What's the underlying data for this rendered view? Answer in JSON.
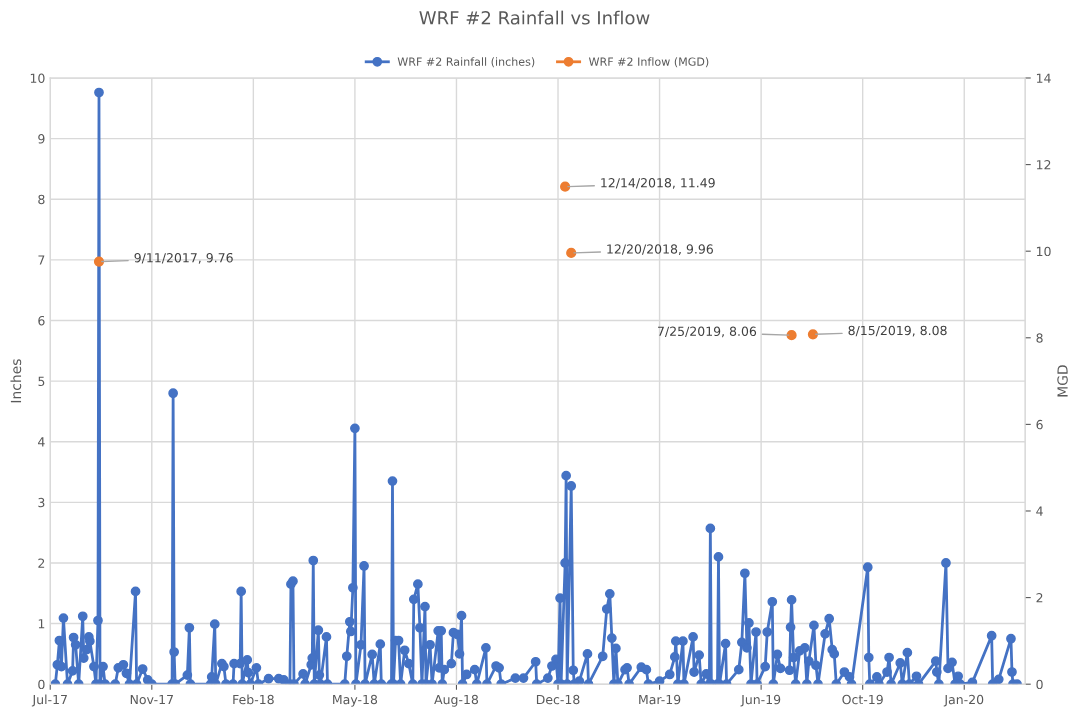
{
  "chart_data": {
    "type": "line",
    "title": "WRF #2 Rainfall vs Inflow",
    "ylabel": "Inches",
    "y2label": "MGD",
    "xlim": [
      "2017-07-25",
      "2020-03-11"
    ],
    "xticks": [
      {
        "value": "2017-07-25",
        "label": "Jul-17"
      },
      {
        "value": "2017-11-02",
        "label": "Nov-17"
      },
      {
        "value": "2018-02-10",
        "label": "Feb-18"
      },
      {
        "value": "2018-05-21",
        "label": "May-18"
      },
      {
        "value": "2018-08-29",
        "label": "Aug-18"
      },
      {
        "value": "2018-12-07",
        "label": "Dec-18"
      },
      {
        "value": "2019-03-17",
        "label": "Mar-19"
      },
      {
        "value": "2019-06-25",
        "label": "Jun-19"
      },
      {
        "value": "2019-10-03",
        "label": "Oct-19"
      },
      {
        "value": "2020-01-11",
        "label": "Jan-20"
      }
    ],
    "ylim": [
      0,
      10
    ],
    "yticks": [
      0,
      1,
      2,
      3,
      4,
      5,
      6,
      7,
      8,
      9,
      10
    ],
    "y2lim": [
      0,
      14
    ],
    "y2ticks": [
      0,
      2,
      4,
      6,
      8,
      10,
      12,
      14
    ],
    "grid": true,
    "legend": "top",
    "marker": "circle",
    "series": [
      {
        "name": "WRF #2 Rainfall (inches)",
        "color": "#4472c4",
        "x": [
          "2017-07-30",
          "2017-08-01",
          "2017-08-03",
          "2017-08-05",
          "2017-08-07",
          "2017-08-11",
          "2017-08-16",
          "2017-08-17",
          "2017-08-19",
          "2017-08-22",
          "2017-08-26",
          "2017-08-27",
          "2017-08-30",
          "2017-09-01",
          "2017-09-02",
          "2017-09-06",
          "2017-09-08",
          "2017-09-10",
          "2017-09-11",
          "2017-09-12",
          "2017-09-15",
          "2017-09-17",
          "2017-09-27",
          "2017-09-30",
          "2017-10-05",
          "2017-10-08",
          "2017-10-11",
          "2017-10-17",
          "2017-10-18",
          "2017-10-24",
          "2017-10-29",
          "2017-11-02",
          "2017-11-22",
          "2017-11-23",
          "2017-11-24",
          "2017-11-25",
          "2017-12-07",
          "2017-12-09",
          "2017-12-10",
          "2017-12-30",
          "2017-12-31",
          "2018-01-03",
          "2018-01-04",
          "2018-01-10",
          "2018-01-12",
          "2018-01-14",
          "2018-01-21",
          "2018-01-22",
          "2018-01-28",
          "2018-01-29",
          "2018-01-30",
          "2018-02-04",
          "2018-02-05",
          "2018-02-07",
          "2018-02-13",
          "2018-02-15",
          "2018-02-25",
          "2018-03-07",
          "2018-03-12",
          "2018-03-18",
          "2018-03-19",
          "2018-03-21",
          "2018-03-22",
          "2018-03-31",
          "2018-04-02",
          "2018-04-08",
          "2018-04-09",
          "2018-04-10",
          "2018-04-11",
          "2018-04-15",
          "2018-04-16",
          "2018-04-17",
          "2018-04-23",
          "2018-04-24",
          "2018-05-11",
          "2018-05-13",
          "2018-05-16",
          "2018-05-17",
          "2018-05-19",
          "2018-05-21",
          "2018-05-22",
          "2018-05-27",
          "2018-05-30",
          "2018-05-31",
          "2018-06-07",
          "2018-06-09",
          "2018-06-15",
          "2018-06-16",
          "2018-06-26",
          "2018-06-27",
          "2018-06-28",
          "2018-06-30",
          "2018-07-03",
          "2018-07-05",
          "2018-07-09",
          "2018-07-13",
          "2018-07-17",
          "2018-07-18",
          "2018-07-22",
          "2018-07-24",
          "2018-07-26",
          "2018-07-29",
          "2018-07-30",
          "2018-08-03",
          "2018-08-05",
          "2018-08-11",
          "2018-08-12",
          "2018-08-14",
          "2018-08-15",
          "2018-08-17",
          "2018-08-24",
          "2018-08-26",
          "2018-08-30",
          "2018-09-01",
          "2018-09-03",
          "2018-09-04",
          "2018-09-08",
          "2018-09-16",
          "2018-09-18",
          "2018-09-27",
          "2018-09-28",
          "2018-10-07",
          "2018-10-10",
          "2018-10-12",
          "2018-10-26",
          "2018-11-03",
          "2018-11-15",
          "2018-11-16",
          "2018-11-27",
          "2018-12-01",
          "2018-12-05",
          "2018-12-07",
          "2018-12-09",
          "2018-12-10",
          "2018-12-14",
          "2018-12-15",
          "2018-12-16",
          "2018-12-20",
          "2018-12-22",
          "2018-12-23",
          "2018-12-28",
          "2019-01-05",
          "2019-01-06",
          "2019-01-20",
          "2019-01-24",
          "2019-01-27",
          "2019-01-29",
          "2019-01-31",
          "2019-02-02",
          "2019-02-04",
          "2019-02-11",
          "2019-02-13",
          "2019-02-15",
          "2019-02-27",
          "2019-03-04",
          "2019-03-06",
          "2019-03-17",
          "2019-03-27",
          "2019-04-01",
          "2019-04-02",
          "2019-04-04",
          "2019-04-09",
          "2019-04-10",
          "2019-04-19",
          "2019-04-20",
          "2019-04-25",
          "2019-04-27",
          "2019-05-02",
          "2019-05-05",
          "2019-05-06",
          "2019-05-07",
          "2019-05-13",
          "2019-05-14",
          "2019-05-15",
          "2019-05-21",
          "2019-05-22",
          "2019-06-03",
          "2019-06-06",
          "2019-06-09",
          "2019-06-11",
          "2019-06-13",
          "2019-06-15",
          "2019-06-20",
          "2019-06-21",
          "2019-06-29",
          "2019-07-01",
          "2019-07-06",
          "2019-07-07",
          "2019-07-11",
          "2019-07-14",
          "2019-07-23",
          "2019-07-24",
          "2019-07-25",
          "2019-07-27",
          "2019-07-29",
          "2019-08-02",
          "2019-08-07",
          "2019-08-09",
          "2019-08-11",
          "2019-08-16",
          "2019-08-18",
          "2019-08-20",
          "2019-08-27",
          "2019-08-31",
          "2019-09-03",
          "2019-09-05",
          "2019-09-07",
          "2019-09-15",
          "2019-09-20",
          "2019-09-22",
          "2019-10-08",
          "2019-10-09",
          "2019-10-10",
          "2019-10-17",
          "2019-10-19",
          "2019-10-27",
          "2019-10-29",
          "2019-10-31",
          "2019-11-09",
          "2019-11-11",
          "2019-11-16",
          "2019-11-18",
          "2019-11-25",
          "2019-11-27",
          "2019-12-14",
          "2019-12-15",
          "2019-12-17",
          "2019-12-24",
          "2019-12-26",
          "2019-12-30",
          "2020-01-02",
          "2020-01-05",
          "2020-01-07",
          "2020-01-19",
          "2020-02-07",
          "2020-02-08",
          "2020-02-14",
          "2020-02-26",
          "2020-02-27",
          "2020-02-28",
          "2020-03-03"
        ],
        "values": [
          0,
          0.32,
          0.72,
          0.29,
          1.09,
          0,
          0.22,
          0.77,
          0.65,
          0,
          1.12,
          0.43,
          0.57,
          0.78,
          0.71,
          0.29,
          0,
          1.05,
          9.76,
          0,
          0.29,
          0,
          0,
          0.27,
          0.32,
          0.18,
          0,
          1.53,
          0,
          0.25,
          0.07,
          0,
          0,
          4.8,
          0.53,
          0,
          0.15,
          0.93,
          0,
          0,
          0.12,
          0.99,
          0,
          0.34,
          0.29,
          0,
          0,
          0.34,
          0.34,
          1.53,
          0,
          0.4,
          0.19,
          0,
          0.27,
          0,
          0.09,
          0.09,
          0.07,
          0,
          1.65,
          1.7,
          0,
          0.17,
          0,
          0.32,
          0.43,
          2.04,
          0,
          0.89,
          0.15,
          0,
          0.78,
          0,
          0,
          0.46,
          1.03,
          0.87,
          1.59,
          4.22,
          0,
          0.65,
          1.95,
          0,
          0.49,
          0,
          0.66,
          0,
          0,
          3.35,
          0,
          0.72,
          0.72,
          0,
          0.56,
          0.34,
          0,
          1.4,
          1.65,
          0.93,
          0,
          1.28,
          0,
          0.65,
          0,
          0.88,
          0.27,
          0.88,
          0,
          0.24,
          0.34,
          0.85,
          0.82,
          0.5,
          1.13,
          0,
          0.16,
          0.24,
          0,
          0.6,
          0,
          0.3,
          0.27,
          0,
          0.1,
          0.1,
          0.37,
          0,
          0.1,
          0.3,
          0.41,
          0,
          1.42,
          0,
          2.0,
          3.44,
          0,
          3.27,
          0.23,
          0,
          0.05,
          0.5,
          0,
          0.46,
          1.24,
          1.49,
          0.76,
          0,
          0.59,
          0,
          0.24,
          0.27,
          0,
          0.28,
          0.24,
          0,
          0.05,
          0.16,
          0.45,
          0.71,
          0,
          0.71,
          0,
          0.78,
          0.2,
          0.48,
          0,
          0.17,
          0,
          2.57,
          0,
          0,
          2.1,
          0,
          0.67,
          0,
          0.24,
          0.69,
          1.83,
          0.6,
          1.01,
          0,
          0.86,
          0,
          0.29,
          0.86,
          1.36,
          0,
          0.49,
          0.26,
          0.23,
          0.94,
          1.39,
          0.44,
          0,
          0.55,
          0.6,
          0,
          0.38,
          0.97,
          0.31,
          0,
          0.83,
          1.08,
          0.57,
          0.5,
          0,
          0.2,
          0.12,
          0,
          1.93,
          0.44,
          0,
          0.12,
          0,
          0.2,
          0.44,
          0,
          0.35,
          0,
          0.52,
          0,
          0.13,
          0,
          0.38,
          0.2,
          0,
          2.0,
          0.26,
          0.36,
          0,
          0.13,
          0,
          0.03,
          0.8,
          0,
          0.08,
          0.75,
          0.2,
          0,
          0
        ]
      },
      {
        "name": "WRF #2 Inflow (MGD)",
        "type": "scatter",
        "axis": "y2",
        "color": "#ed7d31",
        "x": [
          "2017-09-11",
          "2018-12-14",
          "2018-12-20",
          "2019-07-25",
          "2019-08-15"
        ],
        "values": [
          9.76,
          11.49,
          9.96,
          8.06,
          8.08
        ],
        "value_labels": [
          "9/11/2017, 9.76",
          "12/14/2018, 11.49",
          "12/20/2018, 9.96",
          "7/25/2019, 8.06",
          "8/15/2019, 8.08"
        ]
      }
    ]
  }
}
